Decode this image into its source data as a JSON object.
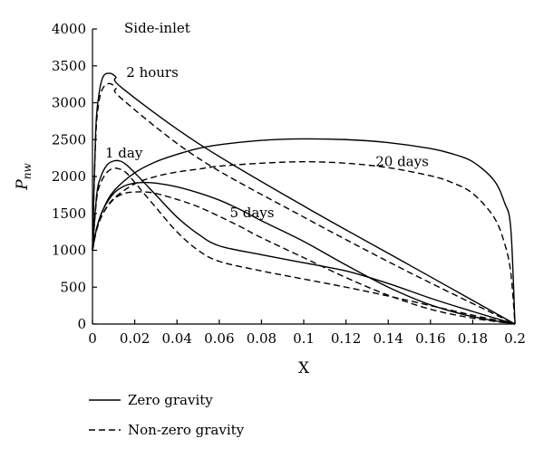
{
  "chart_data": {
    "type": "line",
    "title": "Side-inlet",
    "xlabel": "X",
    "ylabel": "P",
    "ylabel_sub": "nw",
    "xlim": [
      0,
      0.2
    ],
    "ylim": [
      0,
      4000
    ],
    "xticks": [
      0,
      0.02,
      0.04,
      0.06,
      0.08,
      0.1,
      0.12,
      0.14,
      0.16,
      0.18,
      0.2
    ],
    "xtick_labels": [
      "0",
      "0.02",
      "0.04",
      "0.06",
      "0.08",
      "0.1",
      "0.12",
      "0.14",
      "0.16",
      "0.18",
      "0.2"
    ],
    "yticks": [
      0,
      500,
      1000,
      1500,
      2000,
      2500,
      3000,
      3500,
      4000
    ],
    "ytick_labels": [
      "0",
      "500",
      "1000",
      "1500",
      "2000",
      "2500",
      "3000",
      "3500",
      "4000"
    ],
    "grid": false,
    "legend_placement": "bottom-left",
    "legend": [
      {
        "name": "Zero gravity",
        "style": "solid"
      },
      {
        "name": "Non-zero gravity",
        "style": "dashed"
      }
    ],
    "annotations": [
      {
        "text": "2 hours",
        "x": 0.016,
        "y": 3350
      },
      {
        "text": "1 day",
        "x": 0.006,
        "y": 2260
      },
      {
        "text": "5 days",
        "x": 0.065,
        "y": 1450
      },
      {
        "text": "20 days",
        "x": 0.134,
        "y": 2140
      }
    ],
    "series": [
      {
        "label": "2 hours",
        "style": "solid",
        "x": [
          0,
          0.0015,
          0.003,
          0.005,
          0.008,
          0.011,
          0.014,
          0.05,
          0.1,
          0.15,
          0.2
        ],
        "y": [
          1000,
          2600,
          3100,
          3350,
          3400,
          3350,
          3200,
          2450,
          1600,
          800,
          0
        ]
      },
      {
        "label": "2 hours",
        "style": "dashed",
        "x": [
          0,
          0.0015,
          0.003,
          0.005,
          0.008,
          0.011,
          0.014,
          0.05,
          0.1,
          0.15,
          0.2
        ],
        "y": [
          1000,
          2500,
          3000,
          3200,
          3260,
          3200,
          3050,
          2250,
          1450,
          700,
          0
        ]
      },
      {
        "label": "1 day",
        "style": "solid",
        "x": [
          0,
          0.002,
          0.004,
          0.007,
          0.01,
          0.013,
          0.016,
          0.02,
          0.03,
          0.04,
          0.05,
          0.06,
          0.08,
          0.1,
          0.12,
          0.14,
          0.16,
          0.18,
          0.2
        ],
        "y": [
          1000,
          1750,
          2000,
          2160,
          2210,
          2210,
          2160,
          2050,
          1750,
          1450,
          1220,
          1060,
          940,
          830,
          720,
          550,
          350,
          170,
          0
        ]
      },
      {
        "label": "1 day",
        "style": "dashed",
        "x": [
          0,
          0.002,
          0.004,
          0.007,
          0.01,
          0.013,
          0.016,
          0.02,
          0.03,
          0.04,
          0.05,
          0.06,
          0.08,
          0.1,
          0.12,
          0.14,
          0.16,
          0.18,
          0.2
        ],
        "y": [
          1000,
          1700,
          1920,
          2060,
          2110,
          2100,
          2050,
          1920,
          1580,
          1250,
          1000,
          850,
          720,
          610,
          500,
          380,
          250,
          120,
          0
        ]
      },
      {
        "label": "5 days",
        "style": "solid",
        "x": [
          0,
          0.002,
          0.005,
          0.01,
          0.015,
          0.02,
          0.025,
          0.03,
          0.04,
          0.05,
          0.06,
          0.07,
          0.08,
          0.1,
          0.12,
          0.14,
          0.16,
          0.18,
          0.2
        ],
        "y": [
          1000,
          1300,
          1550,
          1770,
          1870,
          1910,
          1920,
          1910,
          1860,
          1780,
          1680,
          1550,
          1400,
          1120,
          800,
          500,
          260,
          100,
          0
        ]
      },
      {
        "label": "5 days",
        "style": "dashed",
        "x": [
          0,
          0.002,
          0.005,
          0.01,
          0.015,
          0.02,
          0.025,
          0.03,
          0.04,
          0.05,
          0.06,
          0.07,
          0.08,
          0.1,
          0.12,
          0.14,
          0.16,
          0.18,
          0.2
        ],
        "y": [
          1000,
          1280,
          1500,
          1690,
          1770,
          1790,
          1790,
          1770,
          1690,
          1590,
          1460,
          1320,
          1170,
          900,
          630,
          390,
          200,
          80,
          0
        ]
      },
      {
        "label": "20 days",
        "style": "solid",
        "x": [
          0,
          0.002,
          0.005,
          0.01,
          0.02,
          0.03,
          0.04,
          0.05,
          0.06,
          0.08,
          0.1,
          0.12,
          0.14,
          0.16,
          0.17,
          0.18,
          0.19,
          0.195,
          0.198,
          0.2
        ],
        "y": [
          1000,
          1300,
          1550,
          1800,
          2050,
          2200,
          2300,
          2380,
          2430,
          2490,
          2510,
          2500,
          2460,
          2380,
          2310,
          2200,
          1950,
          1650,
          1300,
          0
        ]
      },
      {
        "label": "20 days",
        "style": "dashed",
        "x": [
          0,
          0.002,
          0.005,
          0.01,
          0.02,
          0.03,
          0.04,
          0.05,
          0.06,
          0.08,
          0.1,
          0.12,
          0.14,
          0.16,
          0.17,
          0.18,
          0.19,
          0.195,
          0.198,
          0.2
        ],
        "y": [
          1000,
          1280,
          1500,
          1700,
          1900,
          2000,
          2060,
          2100,
          2140,
          2180,
          2200,
          2180,
          2120,
          2010,
          1920,
          1770,
          1450,
          1100,
          700,
          0
        ]
      }
    ]
  }
}
